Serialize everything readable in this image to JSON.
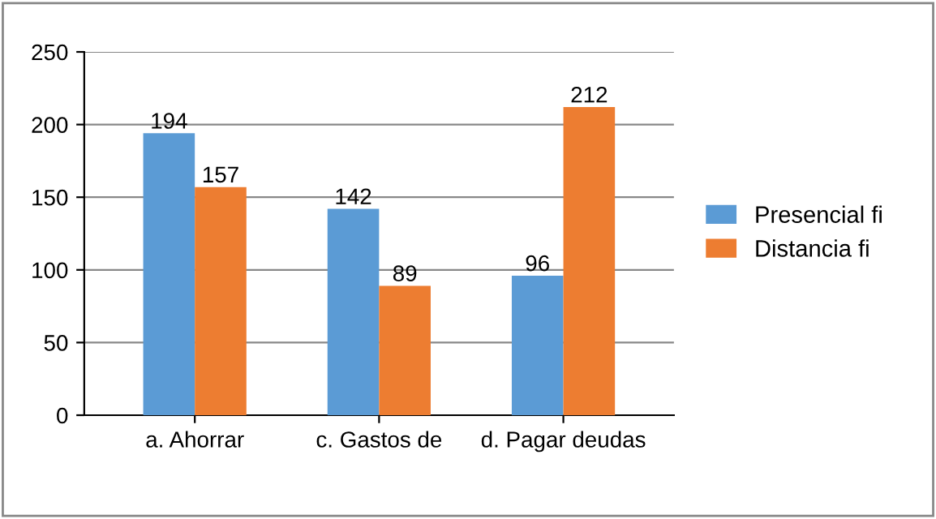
{
  "chart_data": {
    "type": "bar",
    "categories": [
      "a. Ahorrar",
      "c. Gastos de",
      "d. Pagar deudas"
    ],
    "series": [
      {
        "name": "Presencial fi",
        "color": "#5b9bd5",
        "values": [
          194,
          142,
          96
        ]
      },
      {
        "name": "Distancia fi",
        "color": "#ed7d31",
        "values": [
          157,
          89,
          212
        ]
      }
    ],
    "ylim": [
      0,
      250
    ],
    "yticks": [
      0,
      50,
      100,
      150,
      200,
      250
    ],
    "grid": "y",
    "legend": "right",
    "data_labels": true
  }
}
